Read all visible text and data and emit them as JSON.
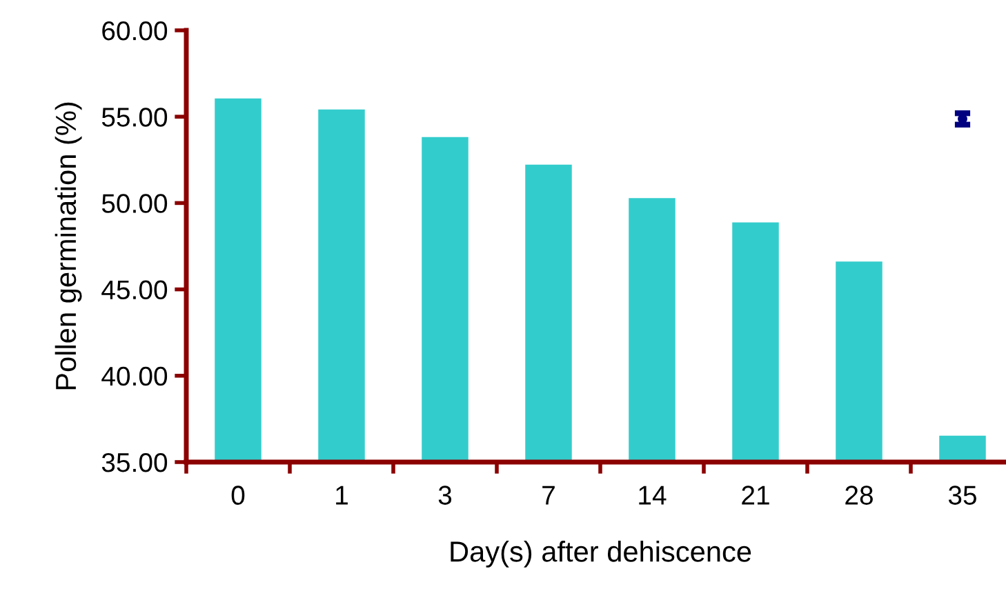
{
  "chart_data": {
    "type": "bar",
    "xlabel": "Day(s) after dehiscence",
    "ylabel": "Pollen germination (%)",
    "categories": [
      "0",
      "1",
      "3",
      "7",
      "14",
      "21",
      "28",
      "35"
    ],
    "series": [
      {
        "color": "#33cccc",
        "values": [
          56.06,
          55.42,
          53.82,
          52.22,
          50.29,
          48.88,
          46.61,
          36.53
        ]
      },
      {
        "type": "scatter",
        "x": [
          "35"
        ],
        "color": "#000080",
        "values": [
          54.87
        ],
        "errors": [
          0.33
        ]
      }
    ],
    "ylim": [
      35,
      60
    ],
    "yticks": [
      {
        "value": 35,
        "label": "35.00"
      },
      {
        "value": 40,
        "label": "40.00"
      },
      {
        "value": 45,
        "label": "45.00"
      },
      {
        "value": 50,
        "label": "50.00"
      },
      {
        "value": 55,
        "label": "55.00"
      },
      {
        "value": 60,
        "label": "60.00"
      }
    ],
    "grid": false
  }
}
